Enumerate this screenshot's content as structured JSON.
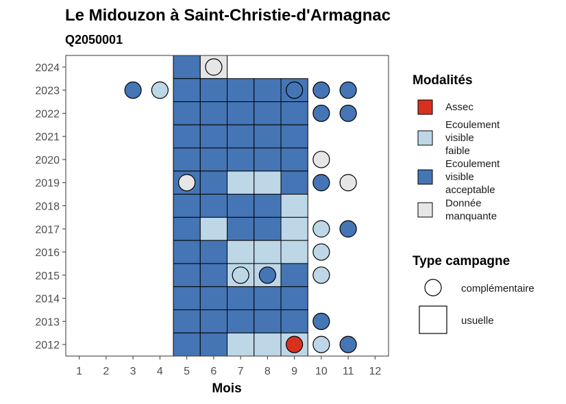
{
  "chart_data": {
    "type": "heatmap",
    "title": "Le Midouzon à Saint-Christie-d'Armagnac",
    "subtitle": "Q2050001",
    "xlabel": "Mois",
    "ylabel": "",
    "x_ticks": [
      1,
      2,
      3,
      4,
      5,
      6,
      7,
      8,
      9,
      10,
      11,
      12
    ],
    "y_ticks": [
      2012,
      2013,
      2014,
      2015,
      2016,
      2017,
      2018,
      2019,
      2020,
      2021,
      2022,
      2023,
      2024
    ],
    "xlim": [
      0.5,
      12.5
    ],
    "ylim": [
      2011.5,
      2024.5
    ],
    "grid": false,
    "legend_placement": "right",
    "modalities": [
      {
        "key": "assec",
        "label": [
          "Assec"
        ],
        "color": "#d7301f"
      },
      {
        "key": "faible",
        "label": [
          "Ecoulement",
          "visible",
          "faible"
        ],
        "color": "#bdd7e7"
      },
      {
        "key": "acceptable",
        "label": [
          "Ecoulement",
          "visible",
          "acceptable"
        ],
        "color": "#4575b4"
      },
      {
        "key": "manquante",
        "label": [
          "Donnée",
          "manquante"
        ],
        "color": "#e6e6e6"
      }
    ],
    "legend_modalities_title": "Modalités",
    "legend_campaign_title": "Type campagne",
    "campaign_types": [
      {
        "key": "complementaire",
        "label": "complémentaire",
        "shape": "circle"
      },
      {
        "key": "usuelle",
        "label": "usuelle",
        "shape": "square"
      }
    ],
    "observations": [
      {
        "year": 2024,
        "month": 5,
        "type": "usuelle",
        "modality": "acceptable"
      },
      {
        "year": 2024,
        "month": 6,
        "type": "usuelle",
        "modality": "manquante"
      },
      {
        "year": 2024,
        "month": 6,
        "type": "complementaire",
        "modality": "manquante"
      },
      {
        "year": 2023,
        "month": 3,
        "type": "complementaire",
        "modality": "acceptable"
      },
      {
        "year": 2023,
        "month": 4,
        "type": "complementaire",
        "modality": "faible"
      },
      {
        "year": 2023,
        "month": 5,
        "type": "usuelle",
        "modality": "acceptable"
      },
      {
        "year": 2023,
        "month": 6,
        "type": "usuelle",
        "modality": "acceptable"
      },
      {
        "year": 2023,
        "month": 7,
        "type": "usuelle",
        "modality": "acceptable"
      },
      {
        "year": 2023,
        "month": 8,
        "type": "usuelle",
        "modality": "acceptable"
      },
      {
        "year": 2023,
        "month": 9,
        "type": "usuelle",
        "modality": "acceptable"
      },
      {
        "year": 2023,
        "month": 9,
        "type": "complementaire",
        "modality": "acceptable"
      },
      {
        "year": 2023,
        "month": 10,
        "type": "complementaire",
        "modality": "acceptable"
      },
      {
        "year": 2023,
        "month": 11,
        "type": "complementaire",
        "modality": "acceptable"
      },
      {
        "year": 2022,
        "month": 5,
        "type": "usuelle",
        "modality": "acceptable"
      },
      {
        "year": 2022,
        "month": 6,
        "type": "usuelle",
        "modality": "acceptable"
      },
      {
        "year": 2022,
        "month": 7,
        "type": "usuelle",
        "modality": "acceptable"
      },
      {
        "year": 2022,
        "month": 8,
        "type": "usuelle",
        "modality": "acceptable"
      },
      {
        "year": 2022,
        "month": 9,
        "type": "usuelle",
        "modality": "acceptable"
      },
      {
        "year": 2022,
        "month": 10,
        "type": "complementaire",
        "modality": "acceptable"
      },
      {
        "year": 2022,
        "month": 11,
        "type": "complementaire",
        "modality": "acceptable"
      },
      {
        "year": 2021,
        "month": 5,
        "type": "usuelle",
        "modality": "acceptable"
      },
      {
        "year": 2021,
        "month": 6,
        "type": "usuelle",
        "modality": "acceptable"
      },
      {
        "year": 2021,
        "month": 7,
        "type": "usuelle",
        "modality": "acceptable"
      },
      {
        "year": 2021,
        "month": 8,
        "type": "usuelle",
        "modality": "acceptable"
      },
      {
        "year": 2021,
        "month": 9,
        "type": "usuelle",
        "modality": "acceptable"
      },
      {
        "year": 2020,
        "month": 5,
        "type": "usuelle",
        "modality": "acceptable"
      },
      {
        "year": 2020,
        "month": 6,
        "type": "usuelle",
        "modality": "acceptable"
      },
      {
        "year": 2020,
        "month": 7,
        "type": "usuelle",
        "modality": "acceptable"
      },
      {
        "year": 2020,
        "month": 8,
        "type": "usuelle",
        "modality": "acceptable"
      },
      {
        "year": 2020,
        "month": 9,
        "type": "usuelle",
        "modality": "acceptable"
      },
      {
        "year": 2020,
        "month": 10,
        "type": "complementaire",
        "modality": "manquante"
      },
      {
        "year": 2019,
        "month": 5,
        "type": "usuelle",
        "modality": "acceptable"
      },
      {
        "year": 2019,
        "month": 5,
        "type": "complementaire",
        "modality": "manquante"
      },
      {
        "year": 2019,
        "month": 6,
        "type": "usuelle",
        "modality": "acceptable"
      },
      {
        "year": 2019,
        "month": 7,
        "type": "usuelle",
        "modality": "faible"
      },
      {
        "year": 2019,
        "month": 8,
        "type": "usuelle",
        "modality": "faible"
      },
      {
        "year": 2019,
        "month": 9,
        "type": "usuelle",
        "modality": "acceptable"
      },
      {
        "year": 2019,
        "month": 10,
        "type": "complementaire",
        "modality": "acceptable"
      },
      {
        "year": 2019,
        "month": 11,
        "type": "complementaire",
        "modality": "manquante"
      },
      {
        "year": 2018,
        "month": 5,
        "type": "usuelle",
        "modality": "acceptable"
      },
      {
        "year": 2018,
        "month": 6,
        "type": "usuelle",
        "modality": "acceptable"
      },
      {
        "year": 2018,
        "month": 7,
        "type": "usuelle",
        "modality": "acceptable"
      },
      {
        "year": 2018,
        "month": 8,
        "type": "usuelle",
        "modality": "acceptable"
      },
      {
        "year": 2018,
        "month": 9,
        "type": "usuelle",
        "modality": "faible"
      },
      {
        "year": 2017,
        "month": 5,
        "type": "usuelle",
        "modality": "acceptable"
      },
      {
        "year": 2017,
        "month": 6,
        "type": "usuelle",
        "modality": "faible"
      },
      {
        "year": 2017,
        "month": 7,
        "type": "usuelle",
        "modality": "acceptable"
      },
      {
        "year": 2017,
        "month": 8,
        "type": "usuelle",
        "modality": "acceptable"
      },
      {
        "year": 2017,
        "month": 9,
        "type": "usuelle",
        "modality": "faible"
      },
      {
        "year": 2017,
        "month": 10,
        "type": "complementaire",
        "modality": "faible"
      },
      {
        "year": 2017,
        "month": 11,
        "type": "complementaire",
        "modality": "acceptable"
      },
      {
        "year": 2016,
        "month": 5,
        "type": "usuelle",
        "modality": "acceptable"
      },
      {
        "year": 2016,
        "month": 6,
        "type": "usuelle",
        "modality": "acceptable"
      },
      {
        "year": 2016,
        "month": 7,
        "type": "usuelle",
        "modality": "faible"
      },
      {
        "year": 2016,
        "month": 8,
        "type": "usuelle",
        "modality": "faible"
      },
      {
        "year": 2016,
        "month": 9,
        "type": "usuelle",
        "modality": "faible"
      },
      {
        "year": 2016,
        "month": 10,
        "type": "complementaire",
        "modality": "faible"
      },
      {
        "year": 2015,
        "month": 5,
        "type": "usuelle",
        "modality": "acceptable"
      },
      {
        "year": 2015,
        "month": 6,
        "type": "usuelle",
        "modality": "acceptable"
      },
      {
        "year": 2015,
        "month": 7,
        "type": "usuelle",
        "modality": "faible"
      },
      {
        "year": 2015,
        "month": 7,
        "type": "complementaire",
        "modality": "faible"
      },
      {
        "year": 2015,
        "month": 8,
        "type": "usuelle",
        "modality": "faible"
      },
      {
        "year": 2015,
        "month": 8,
        "type": "complementaire",
        "modality": "acceptable"
      },
      {
        "year": 2015,
        "month": 9,
        "type": "usuelle",
        "modality": "acceptable"
      },
      {
        "year": 2015,
        "month": 10,
        "type": "complementaire",
        "modality": "faible"
      },
      {
        "year": 2014,
        "month": 5,
        "type": "usuelle",
        "modality": "acceptable"
      },
      {
        "year": 2014,
        "month": 6,
        "type": "usuelle",
        "modality": "acceptable"
      },
      {
        "year": 2014,
        "month": 7,
        "type": "usuelle",
        "modality": "acceptable"
      },
      {
        "year": 2014,
        "month": 8,
        "type": "usuelle",
        "modality": "acceptable"
      },
      {
        "year": 2014,
        "month": 9,
        "type": "usuelle",
        "modality": "acceptable"
      },
      {
        "year": 2013,
        "month": 5,
        "type": "usuelle",
        "modality": "acceptable"
      },
      {
        "year": 2013,
        "month": 6,
        "type": "usuelle",
        "modality": "acceptable"
      },
      {
        "year": 2013,
        "month": 7,
        "type": "usuelle",
        "modality": "acceptable"
      },
      {
        "year": 2013,
        "month": 8,
        "type": "usuelle",
        "modality": "acceptable"
      },
      {
        "year": 2013,
        "month": 9,
        "type": "usuelle",
        "modality": "acceptable"
      },
      {
        "year": 2013,
        "month": 10,
        "type": "complementaire",
        "modality": "acceptable"
      },
      {
        "year": 2012,
        "month": 5,
        "type": "usuelle",
        "modality": "acceptable"
      },
      {
        "year": 2012,
        "month": 6,
        "type": "usuelle",
        "modality": "acceptable"
      },
      {
        "year": 2012,
        "month": 7,
        "type": "usuelle",
        "modality": "faible"
      },
      {
        "year": 2012,
        "month": 8,
        "type": "usuelle",
        "modality": "faible"
      },
      {
        "year": 2012,
        "month": 9,
        "type": "usuelle",
        "modality": "faible"
      },
      {
        "year": 2012,
        "month": 9,
        "type": "complementaire",
        "modality": "assec"
      },
      {
        "year": 2012,
        "month": 10,
        "type": "complementaire",
        "modality": "faible"
      },
      {
        "year": 2012,
        "month": 11,
        "type": "complementaire",
        "modality": "acceptable"
      }
    ]
  }
}
